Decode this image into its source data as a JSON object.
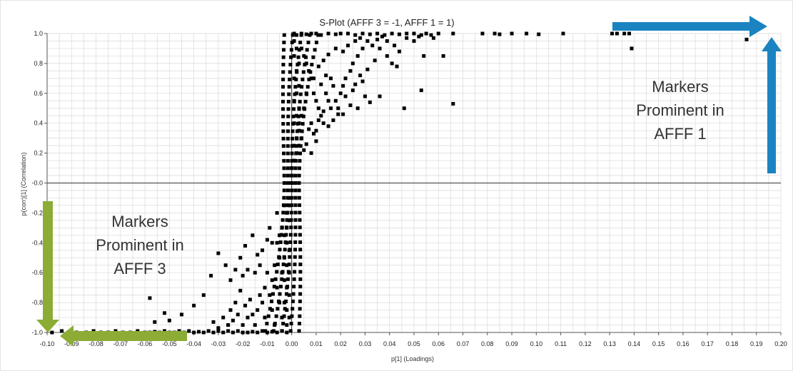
{
  "chart_data": {
    "type": "scatter",
    "title": "S-Plot (AFFF 3 = -1, AFFF 1 = 1)",
    "xlabel": "p[1] (Loadings)",
    "ylabel": "p(corr)[1] (Correlation)",
    "xlim": [
      -0.1,
      0.2
    ],
    "ylim": [
      -1.0,
      1.0
    ],
    "x_ticks": [
      "-0.10",
      "-0.09",
      "-0.08",
      "-0.07",
      "-0.06",
      "-0.05",
      "-0.04",
      "-0.03",
      "-0.02",
      "-0.01",
      "0.00",
      "0.01",
      "0.02",
      "0.03",
      "0.04",
      "0.05",
      "0.06",
      "0.07",
      "0.08",
      "0.09",
      "0.10",
      "0.11",
      "0.12",
      "0.13",
      "0.14",
      "0.15",
      "0.16",
      "0.17",
      "0.18",
      "0.19",
      "0.20"
    ],
    "y_ticks": [
      "-1.0",
      "-0.8",
      "-0.6",
      "-0.4",
      "-0.2",
      "-0.0",
      "0.2",
      "0.4",
      "0.6",
      "0.8",
      "1.0"
    ],
    "grid": true,
    "marker": "square",
    "marker_color": "#000000",
    "points": [
      [
        0.001,
        1.0
      ],
      [
        0.002,
        0.99
      ],
      [
        0.004,
        1.0
      ],
      [
        0.006,
        0.995
      ],
      [
        0.008,
        1.0
      ],
      [
        0.01,
        1.0
      ],
      [
        0.012,
        0.99
      ],
      [
        0.015,
        1.0
      ],
      [
        0.018,
        0.995
      ],
      [
        0.02,
        1.0
      ],
      [
        0.023,
        1.0
      ],
      [
        0.026,
        0.99
      ],
      [
        0.029,
        1.0
      ],
      [
        0.032,
        0.995
      ],
      [
        0.035,
        1.0
      ],
      [
        0.038,
        0.99
      ],
      [
        0.041,
        1.0
      ],
      [
        0.044,
        0.995
      ],
      [
        0.047,
        1.0
      ],
      [
        0.05,
        1.0
      ],
      [
        0.053,
        0.99
      ],
      [
        0.055,
        1.0
      ],
      [
        0.057,
        0.99
      ],
      [
        0.06,
        1.0
      ],
      [
        0.066,
        1.0
      ],
      [
        0.078,
        1.0
      ],
      [
        0.083,
        1.0
      ],
      [
        0.085,
        0.995
      ],
      [
        0.09,
        1.0
      ],
      [
        0.096,
        1.0
      ],
      [
        0.101,
        0.995
      ],
      [
        0.111,
        1.0
      ],
      [
        0.131,
        1.0
      ],
      [
        0.133,
        1.0
      ],
      [
        0.136,
        1.0
      ],
      [
        0.138,
        1.0
      ],
      [
        0.139,
        0.9
      ],
      [
        0.186,
        0.96
      ],
      [
        0.001,
        0.95
      ],
      [
        0.002,
        0.9
      ],
      [
        0.001,
        0.85
      ],
      [
        0.003,
        0.8
      ],
      [
        0.002,
        0.75
      ],
      [
        0.001,
        0.7
      ],
      [
        0.003,
        0.65
      ],
      [
        0.002,
        0.6
      ],
      [
        0.001,
        0.55
      ],
      [
        0.003,
        0.5
      ],
      [
        0.002,
        0.45
      ],
      [
        0.001,
        0.4
      ],
      [
        0.003,
        0.35
      ],
      [
        0.002,
        0.3
      ],
      [
        0.001,
        0.25
      ],
      [
        0.002,
        0.2
      ],
      [
        0.001,
        0.15
      ],
      [
        0.0,
        0.1
      ],
      [
        0.0,
        0.05
      ],
      [
        0.0,
        0.0
      ],
      [
        0.004,
        0.9
      ],
      [
        0.005,
        0.85
      ],
      [
        0.006,
        0.8
      ],
      [
        0.007,
        0.75
      ],
      [
        0.008,
        0.7
      ],
      [
        0.006,
        0.6
      ],
      [
        0.005,
        0.5
      ],
      [
        0.004,
        0.45
      ],
      [
        0.003,
        0.4
      ],
      [
        0.004,
        0.3
      ],
      [
        0.003,
        0.25
      ],
      [
        0.009,
        0.6
      ],
      [
        0.01,
        0.55
      ],
      [
        0.011,
        0.5
      ],
      [
        0.012,
        0.45
      ],
      [
        0.013,
        0.4
      ],
      [
        0.01,
        0.35
      ],
      [
        0.008,
        0.4
      ],
      [
        0.014,
        0.6
      ],
      [
        0.015,
        0.55
      ],
      [
        0.016,
        0.5
      ],
      [
        0.018,
        0.55
      ],
      [
        0.019,
        0.5
      ],
      [
        0.02,
        0.6
      ],
      [
        0.021,
        0.65
      ],
      [
        0.022,
        0.7
      ],
      [
        0.024,
        0.75
      ],
      [
        0.025,
        0.8
      ],
      [
        0.027,
        0.85
      ],
      [
        0.029,
        0.9
      ],
      [
        0.031,
        0.95
      ],
      [
        0.017,
        0.65
      ],
      [
        0.016,
        0.7
      ],
      [
        0.014,
        0.72
      ],
      [
        0.012,
        0.66
      ],
      [
        0.009,
        0.7
      ],
      [
        0.011,
        0.78
      ],
      [
        0.013,
        0.82
      ],
      [
        0.015,
        0.86
      ],
      [
        0.018,
        0.9
      ],
      [
        0.021,
        0.88
      ],
      [
        0.023,
        0.92
      ],
      [
        0.026,
        0.95
      ],
      [
        0.028,
        0.97
      ],
      [
        0.033,
        0.92
      ],
      [
        0.035,
        0.96
      ],
      [
        0.037,
        0.98
      ],
      [
        0.039,
        0.95
      ],
      [
        0.036,
        0.9
      ],
      [
        0.034,
        0.82
      ],
      [
        0.031,
        0.76
      ],
      [
        0.028,
        0.72
      ],
      [
        0.025,
        0.62
      ],
      [
        0.022,
        0.58
      ],
      [
        0.019,
        0.46
      ],
      [
        0.017,
        0.42
      ],
      [
        0.015,
        0.38
      ],
      [
        0.013,
        0.48
      ],
      [
        0.011,
        0.42
      ],
      [
        0.01,
        0.28
      ],
      [
        0.009,
        0.33
      ],
      [
        0.007,
        0.36
      ],
      [
        0.006,
        0.26
      ],
      [
        0.005,
        0.22
      ],
      [
        0.008,
        0.2
      ],
      [
        0.039,
        0.85
      ],
      [
        0.042,
        0.92
      ],
      [
        0.044,
        0.88
      ],
      [
        0.047,
        0.97
      ],
      [
        0.05,
        0.95
      ],
      [
        0.052,
        0.98
      ],
      [
        0.054,
        0.85
      ],
      [
        0.058,
        0.97
      ],
      [
        0.046,
        0.5
      ],
      [
        0.053,
        0.62
      ],
      [
        0.062,
        0.85
      ],
      [
        0.066,
        0.53
      ],
      [
        0.036,
        0.58
      ],
      [
        0.032,
        0.54
      ],
      [
        0.03,
        0.58
      ],
      [
        0.027,
        0.5
      ],
      [
        0.024,
        0.52
      ],
      [
        0.021,
        0.46
      ],
      [
        0.041,
        0.8
      ],
      [
        0.043,
        0.78
      ],
      [
        0.029,
        0.68
      ],
      [
        0.026,
        0.66
      ],
      [
        -0.002,
        -1.0
      ],
      [
        -0.004,
        -0.99
      ],
      [
        -0.006,
        -1.0
      ],
      [
        -0.008,
        -0.995
      ],
      [
        -0.01,
        -1.0
      ],
      [
        -0.012,
        -0.99
      ],
      [
        -0.014,
        -1.0
      ],
      [
        -0.016,
        -0.995
      ],
      [
        -0.018,
        -1.0
      ],
      [
        -0.02,
        -1.0
      ],
      [
        -0.022,
        -0.99
      ],
      [
        -0.024,
        -1.0
      ],
      [
        -0.026,
        -0.99
      ],
      [
        -0.028,
        -1.0
      ],
      [
        -0.03,
        -0.99
      ],
      [
        -0.032,
        -1.0
      ],
      [
        -0.034,
        -0.99
      ],
      [
        -0.036,
        -1.0
      ],
      [
        -0.038,
        -0.995
      ],
      [
        -0.04,
        -1.0
      ],
      [
        -0.042,
        -0.99
      ],
      [
        -0.044,
        -1.0
      ],
      [
        -0.046,
        -0.99
      ],
      [
        -0.048,
        -1.0
      ],
      [
        -0.05,
        -1.0
      ],
      [
        -0.052,
        -0.99
      ],
      [
        -0.054,
        -1.0
      ],
      [
        -0.056,
        -0.995
      ],
      [
        -0.058,
        -1.0
      ],
      [
        -0.06,
        -1.0
      ],
      [
        -0.063,
        -0.99
      ],
      [
        -0.066,
        -1.0
      ],
      [
        -0.069,
        -1.0
      ],
      [
        -0.072,
        -0.99
      ],
      [
        -0.075,
        -1.0
      ],
      [
        -0.078,
        -1.0
      ],
      [
        -0.081,
        -0.99
      ],
      [
        -0.084,
        -1.0
      ],
      [
        -0.088,
        -1.0
      ],
      [
        -0.091,
        -1.0
      ],
      [
        -0.094,
        -0.99
      ],
      [
        -0.098,
        -1.0
      ],
      [
        -0.001,
        -0.1
      ],
      [
        -0.001,
        -0.15
      ],
      [
        -0.002,
        -0.2
      ],
      [
        -0.001,
        -0.25
      ],
      [
        -0.002,
        -0.3
      ],
      [
        -0.003,
        -0.35
      ],
      [
        -0.002,
        -0.4
      ],
      [
        -0.001,
        -0.45
      ],
      [
        -0.003,
        -0.5
      ],
      [
        -0.002,
        -0.55
      ],
      [
        -0.001,
        -0.6
      ],
      [
        -0.003,
        -0.65
      ],
      [
        -0.002,
        -0.7
      ],
      [
        -0.001,
        -0.75
      ],
      [
        -0.003,
        -0.8
      ],
      [
        -0.002,
        -0.85
      ],
      [
        -0.001,
        -0.9
      ],
      [
        -0.002,
        -0.95
      ],
      [
        -0.004,
        -0.3
      ],
      [
        -0.005,
        -0.35
      ],
      [
        -0.006,
        -0.4
      ],
      [
        -0.005,
        -0.5
      ],
      [
        -0.004,
        -0.6
      ],
      [
        -0.006,
        -0.7
      ],
      [
        -0.005,
        -0.8
      ],
      [
        -0.004,
        -0.9
      ],
      [
        -0.007,
        -0.55
      ],
      [
        -0.008,
        -0.65
      ],
      [
        -0.009,
        -0.75
      ],
      [
        -0.008,
        -0.85
      ],
      [
        -0.007,
        -0.95
      ],
      [
        -0.01,
        -0.6
      ],
      [
        -0.011,
        -0.7
      ],
      [
        -0.012,
        -0.8
      ],
      [
        -0.011,
        -0.9
      ],
      [
        -0.013,
        -0.75
      ],
      [
        -0.014,
        -0.85
      ],
      [
        -0.015,
        -0.95
      ],
      [
        -0.016,
        -0.88
      ],
      [
        -0.017,
        -0.78
      ],
      [
        -0.018,
        -0.9
      ],
      [
        -0.019,
        -0.82
      ],
      [
        -0.02,
        -0.95
      ],
      [
        -0.021,
        -0.72
      ],
      [
        -0.022,
        -0.88
      ],
      [
        -0.023,
        -0.8
      ],
      [
        -0.024,
        -0.92
      ],
      [
        -0.025,
        -0.85
      ],
      [
        -0.026,
        -0.95
      ],
      [
        -0.028,
        -0.9
      ],
      [
        -0.03,
        -0.97
      ],
      [
        -0.032,
        -0.93
      ],
      [
        -0.013,
        -0.55
      ],
      [
        -0.012,
        -0.45
      ],
      [
        -0.015,
        -0.6
      ],
      [
        -0.016,
        -0.35
      ],
      [
        -0.019,
        -0.42
      ],
      [
        -0.021,
        -0.5
      ],
      [
        -0.023,
        -0.58
      ],
      [
        -0.025,
        -0.65
      ],
      [
        -0.027,
        -0.55
      ],
      [
        -0.03,
        -0.47
      ],
      [
        -0.033,
        -0.62
      ],
      [
        -0.036,
        -0.75
      ],
      [
        -0.04,
        -0.82
      ],
      [
        -0.045,
        -0.88
      ],
      [
        -0.05,
        -0.92
      ],
      [
        -0.056,
        -0.93
      ],
      [
        -0.058,
        -0.77
      ],
      [
        -0.052,
        -0.87
      ],
      [
        -0.02,
        -0.62
      ],
      [
        -0.018,
        -0.58
      ],
      [
        -0.014,
        -0.48
      ],
      [
        -0.01,
        -0.38
      ],
      [
        -0.009,
        -0.3
      ],
      [
        -0.008,
        -0.4
      ],
      [
        -0.006,
        -0.2
      ],
      [
        -0.003,
        -0.15
      ]
    ],
    "annotations": [
      {
        "lines": [
          "Markers",
          "Prominent in"
        ],
        "highlight": "AFFF 1",
        "highlight_color": "#1b84c0",
        "arrows": [
          "right",
          "up"
        ],
        "arrow_color": "#1b84c0"
      },
      {
        "lines": [
          "Markers",
          "Prominent in"
        ],
        "highlight": "AFFF 3",
        "highlight_color": "#8cac35",
        "arrows": [
          "down",
          "left"
        ],
        "arrow_color": "#8cac35"
      }
    ]
  }
}
